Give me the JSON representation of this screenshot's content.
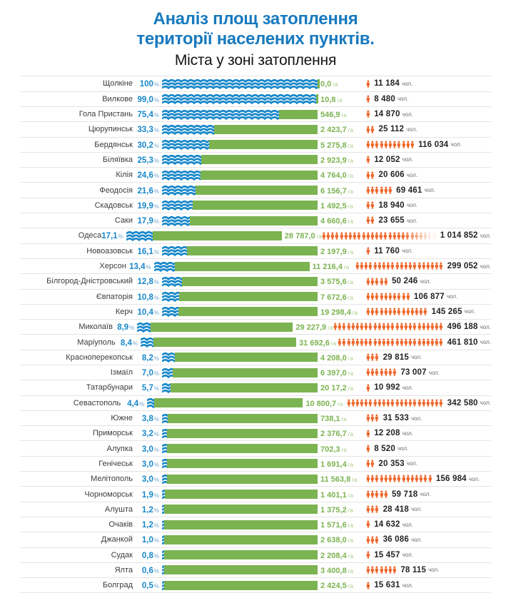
{
  "title": {
    "line1": "Аналіз площ затоплення",
    "line2": "території населених пунктів.",
    "subtitle": "Міста у зоні затоплення"
  },
  "units": {
    "percent": "%",
    "area": "га",
    "people": "чол."
  },
  "colors": {
    "title_blue": "#1779be",
    "wave_blue": "#1787c9",
    "bar_green": "#7cb351",
    "area_text_green": "#7cb351",
    "person_orange": "#ec6528",
    "divider": "#e4e4e4"
  },
  "rows": [
    {
      "name": "Щолкіне",
      "pct": "100",
      "pct_value": 100,
      "area": "0,0",
      "pop": "11 184",
      "icons": 1,
      "fade": false
    },
    {
      "name": "Вилкове",
      "pct": "99,0",
      "pct_value": 99.0,
      "area": "10,8",
      "pop": "8 480",
      "icons": 1,
      "fade": false
    },
    {
      "name": "Гола Пристань",
      "pct": "75,4",
      "pct_value": 75.4,
      "area": "546,9",
      "pop": "14 870",
      "icons": 1,
      "fade": false
    },
    {
      "name": "Цюрупинськ",
      "pct": "33,3",
      "pct_value": 33.3,
      "area": "2 423,7",
      "pop": "25 112",
      "icons": 2,
      "fade": false
    },
    {
      "name": "Бердянськ",
      "pct": "30,2",
      "pct_value": 30.2,
      "area": "5 275,8",
      "pop": "116 034",
      "icons": 11,
      "fade": false
    },
    {
      "name": "Біляївка",
      "pct": "25,3",
      "pct_value": 25.3,
      "area": "2 923,9",
      "pop": "12 052",
      "icons": 1,
      "fade": false
    },
    {
      "name": "Кілія",
      "pct": "24,6",
      "pct_value": 24.6,
      "area": "4 764,0",
      "pop": "20 606",
      "icons": 2,
      "fade": false
    },
    {
      "name": "Феодосія",
      "pct": "21,6",
      "pct_value": 21.6,
      "area": "6 156,7",
      "pop": "69 461",
      "icons": 6,
      "fade": false
    },
    {
      "name": "Скадовськ",
      "pct": "19,9",
      "pct_value": 19.9,
      "area": "1 492,5",
      "pop": "18 940",
      "icons": 2,
      "fade": false
    },
    {
      "name": "Саки",
      "pct": "17,9",
      "pct_value": 17.9,
      "area": "4 660,6",
      "pop": "23 655",
      "icons": 2,
      "fade": false
    },
    {
      "name": "Одеса",
      "pct": "17,1",
      "pct_value": 17.1,
      "area": "28 787,0",
      "pop": "1 014 852",
      "icons": 26,
      "fade": true
    },
    {
      "name": "Новоазовськ",
      "pct": "16,1",
      "pct_value": 16.1,
      "area": "2 197,9",
      "pop": "11 760",
      "icons": 1,
      "fade": false
    },
    {
      "name": "Херсон",
      "pct": "13,4",
      "pct_value": 13.4,
      "area": "11 216,4",
      "pop": "299 052",
      "icons": 20,
      "fade": false
    },
    {
      "name": "Білгород-Дністровський",
      "pct": "12,8",
      "pct_value": 12.8,
      "area": "3 575,6",
      "pop": "50 246",
      "icons": 5,
      "fade": false
    },
    {
      "name": "Євпаторія",
      "pct": "10,8",
      "pct_value": 10.8,
      "area": "7 672,6",
      "pop": "106 877",
      "icons": 10,
      "fade": false
    },
    {
      "name": "Керч",
      "pct": "10,4",
      "pct_value": 10.4,
      "area": "19 298,4",
      "pop": "145 265",
      "icons": 14,
      "fade": false
    },
    {
      "name": "Миколаїв",
      "pct": "8,9",
      "pct_value": 8.9,
      "area": "29 227,9",
      "pop": "496 188",
      "icons": 25,
      "fade": false
    },
    {
      "name": "Маріуполь",
      "pct": "8,4",
      "pct_value": 8.4,
      "area": "31 692,6",
      "pop": "461 810",
      "icons": 24,
      "fade": false
    },
    {
      "name": "Красноперекопськ",
      "pct": "8,2",
      "pct_value": 8.2,
      "area": "4 208,0",
      "pop": "29 815",
      "icons": 3,
      "fade": false
    },
    {
      "name": "Ізмаїл",
      "pct": "7,0",
      "pct_value": 7.0,
      "area": "6 397,0",
      "pop": "73 007",
      "icons": 7,
      "fade": false
    },
    {
      "name": "Татарбунари",
      "pct": "5,7",
      "pct_value": 5.7,
      "area": "20 17,2",
      "pop": "10 992",
      "icons": 1,
      "fade": false
    },
    {
      "name": "Севастополь",
      "pct": "4,4",
      "pct_value": 4.4,
      "area": "10 800,7",
      "pop": "342 580",
      "icons": 22,
      "fade": false
    },
    {
      "name": "Южне",
      "pct": "3,8",
      "pct_value": 3.8,
      "area": "738,1",
      "pop": "31 533",
      "icons": 3,
      "fade": false
    },
    {
      "name": "Приморськ",
      "pct": "3,2",
      "pct_value": 3.2,
      "area": "2 376,7",
      "pop": "12 208",
      "icons": 1,
      "fade": false
    },
    {
      "name": "Алупка",
      "pct": "3,0",
      "pct_value": 3.0,
      "area": "702,3",
      "pop": "8 520",
      "icons": 1,
      "fade": false
    },
    {
      "name": "Генічеськ",
      "pct": "3,0",
      "pct_value": 3.0,
      "area": "1 691,4",
      "pop": "20 353",
      "icons": 2,
      "fade": false
    },
    {
      "name": "Мелітополь",
      "pct": "3,0",
      "pct_value": 3.0,
      "area": "11 563,8",
      "pop": "156 984",
      "icons": 15,
      "fade": false
    },
    {
      "name": "Чорноморськ",
      "pct": "1,9",
      "pct_value": 1.9,
      "area": "1 401,1",
      "pop": "59 718",
      "icons": 5,
      "fade": false
    },
    {
      "name": "Алушта",
      "pct": "1,2",
      "pct_value": 1.2,
      "area": "1 375,2",
      "pop": "28 418",
      "icons": 3,
      "fade": false
    },
    {
      "name": "Очаків",
      "pct": "1,2",
      "pct_value": 1.2,
      "area": "1 571,6",
      "pop": "14 632",
      "icons": 1,
      "fade": false
    },
    {
      "name": "Джанкой",
      "pct": "1,0",
      "pct_value": 1.0,
      "area": "2 638,0",
      "pop": "36 086",
      "icons": 3,
      "fade": false
    },
    {
      "name": "Судак",
      "pct": "0,8",
      "pct_value": 0.8,
      "area": "2 208,4",
      "pop": "15 457",
      "icons": 1,
      "fade": false
    },
    {
      "name": "Ялта",
      "pct": "0,6",
      "pct_value": 0.6,
      "area": "3 400,8",
      "pop": "78 115",
      "icons": 7,
      "fade": false
    },
    {
      "name": "Болград",
      "pct": "0,5",
      "pct_value": 0.5,
      "area": "2 424,5",
      "pop": "15 631",
      "icons": 1,
      "fade": false
    }
  ],
  "chart_data": {
    "type": "bar",
    "orientation": "horizontal",
    "title": "Аналіз площ затоплення території населених пунктів. Міста у зоні затоплення",
    "categories": [
      "Щолкіне",
      "Вилкове",
      "Гола Пристань",
      "Цюрупинськ",
      "Бердянськ",
      "Біляївка",
      "Кілія",
      "Феодосія",
      "Скадовськ",
      "Саки",
      "Одеса",
      "Новоазовськ",
      "Херсон",
      "Білгород-Дністровський",
      "Євпаторія",
      "Керч",
      "Миколаїв",
      "Маріуполь",
      "Красноперекопськ",
      "Ізмаїл",
      "Татарбунари",
      "Севастополь",
      "Южне",
      "Приморськ",
      "Алупка",
      "Генічеськ",
      "Мелітополь",
      "Чорноморськ",
      "Алушта",
      "Очаків",
      "Джанкой",
      "Судак",
      "Ялта",
      "Болград"
    ],
    "series": [
      {
        "name": "%",
        "values": [
          100,
          99.0,
          75.4,
          33.3,
          30.2,
          25.3,
          24.6,
          21.6,
          19.9,
          17.9,
          17.1,
          16.1,
          13.4,
          12.8,
          10.8,
          10.4,
          8.9,
          8.4,
          8.2,
          7.0,
          5.7,
          4.4,
          3.8,
          3.2,
          3.0,
          3.0,
          3.0,
          1.9,
          1.2,
          1.2,
          1.0,
          0.8,
          0.6,
          0.5
        ]
      },
      {
        "name": "га",
        "values": [
          0.0,
          10.8,
          546.9,
          2423.7,
          5275.8,
          2923.9,
          4764.0,
          6156.7,
          1492.5,
          4660.6,
          28787.0,
          2197.9,
          11216.4,
          3575.6,
          7672.6,
          19298.4,
          29227.9,
          31692.6,
          4208.0,
          6397.0,
          2017.2,
          10800.7,
          738.1,
          2376.7,
          702.3,
          1691.4,
          11563.8,
          1401.1,
          1375.2,
          1571.6,
          2638.0,
          2208.4,
          3400.8,
          2424.5
        ]
      },
      {
        "name": "чол.",
        "values": [
          11184,
          8480,
          14870,
          25112,
          116034,
          12052,
          20606,
          69461,
          18940,
          23655,
          1014852,
          11760,
          299052,
          50246,
          106877,
          145265,
          496188,
          461810,
          29815,
          73007,
          10992,
          342580,
          31533,
          12208,
          8520,
          20353,
          156984,
          59718,
          28418,
          14632,
          36086,
          15457,
          78115,
          15631
        ]
      }
    ],
    "xlim": [
      0,
      100
    ],
    "legend": false,
    "grid": false
  }
}
